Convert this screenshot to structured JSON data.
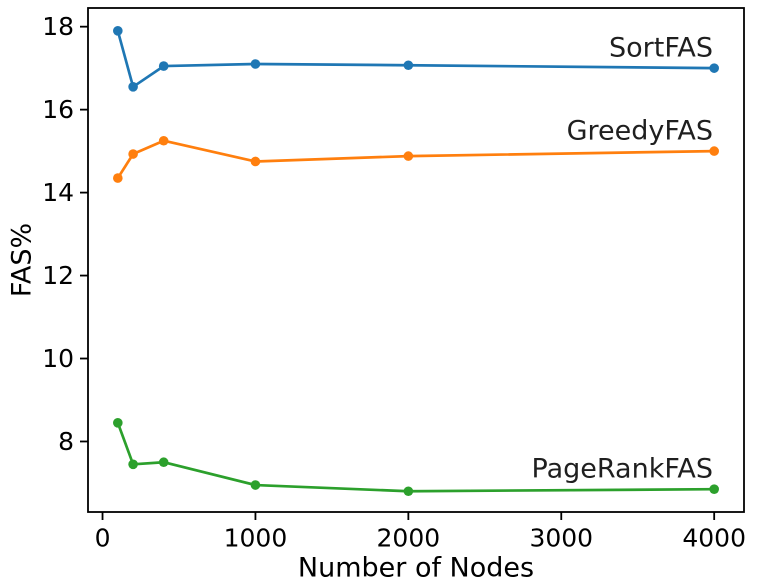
{
  "chart_data": {
    "type": "line",
    "title": "",
    "xlabel": "Number of Nodes",
    "ylabel": "FAS%",
    "x": [
      100,
      200,
      400,
      1000,
      2000,
      4000
    ],
    "series": [
      {
        "name": "SortFAS",
        "color": "#1f77b4",
        "values": [
          17.9,
          16.55,
          17.05,
          17.1,
          17.07,
          17.0
        ]
      },
      {
        "name": "GreedyFAS",
        "color": "#ff7f0e",
        "values": [
          14.35,
          14.93,
          15.25,
          14.75,
          14.88,
          15.0
        ]
      },
      {
        "name": "PageRankFAS",
        "color": "#2ca02c",
        "values": [
          8.45,
          7.45,
          7.5,
          6.95,
          6.8,
          6.85
        ]
      }
    ],
    "xticks": [
      0,
      1000,
      2000,
      3000,
      4000
    ],
    "yticks": [
      8,
      10,
      12,
      14,
      16,
      18
    ],
    "xlim": [
      -95,
      4195
    ],
    "ylim": [
      6.3,
      18.45
    ],
    "grid": false,
    "legend": "inline-annotations",
    "background": "#ffffff",
    "axis_color": "#000000"
  }
}
